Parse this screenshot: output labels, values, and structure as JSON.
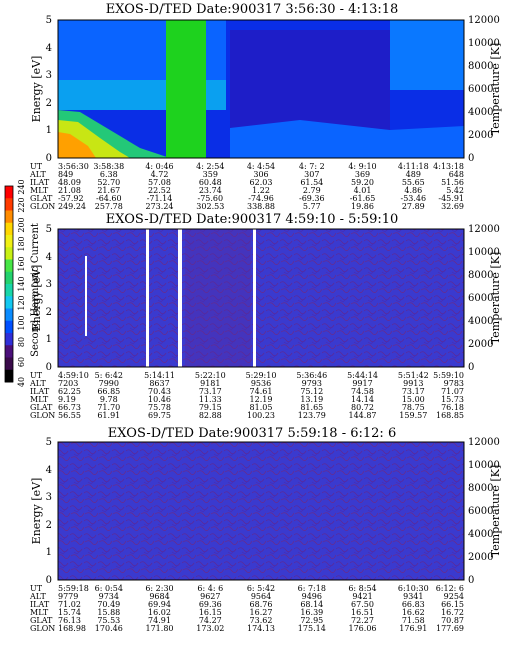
{
  "colorbar": {
    "label": "Second Harmonic Current",
    "ticks": [
      "40",
      "60",
      "80",
      "100",
      "120",
      "140",
      "160",
      "180",
      "200",
      "220",
      "240"
    ],
    "colors": [
      "#000000",
      "#3a0a4a",
      "#4b0f7a",
      "#2f2fd8",
      "#0050ff",
      "#0a8cff",
      "#14c8f0",
      "#19d6a8",
      "#23d26e",
      "#46e646",
      "#c8f014",
      "#f0f014",
      "#ffd700",
      "#ff8c00",
      "#ff3b00",
      "#ff0000"
    ]
  },
  "chart_data": [
    {
      "type": "heatmap",
      "title": "EXOS-D/TED  Date:900317  3:56:30 - 4:13:18",
      "ylabel": "Energy [eV]",
      "y2label": "Temperature [K]",
      "ylim": [
        0,
        5
      ],
      "y2lim": [
        0,
        12000
      ],
      "yticks": [
        "0",
        "1",
        "2",
        "3",
        "4",
        "5"
      ],
      "y2ticks": [
        "0",
        "2000",
        "4000",
        "6000",
        "8000",
        "10000",
        "12000"
      ],
      "table_labels": [
        "UT",
        "ALT",
        "ILAT",
        "MLT",
        "GLAT",
        "GLON"
      ],
      "table": [
        [
          "3:56:30",
          "3:58:38",
          "4: 0:46",
          "4: 2:54",
          "4: 4:54",
          "4: 7: 2",
          "4: 9:10",
          "4:11:18",
          "4:13:18"
        ],
        [
          "849",
          "6.38",
          "4.72",
          "359",
          "306",
          "307",
          "369",
          "489",
          "648"
        ],
        [
          "48.09",
          "52.70",
          "57.08",
          "60.48",
          "62.03",
          "61.54",
          "59.20",
          "55.65",
          "51.56"
        ],
        [
          "21.08",
          "21.67",
          "22.52",
          "23.74",
          "1.22",
          "2.79",
          "4.01",
          "4.86",
          "5.42"
        ],
        [
          "-57.92",
          "-64.60",
          "-71.14",
          "-75.60",
          "-74.96",
          "-69.36",
          "-61.65",
          "-53.46",
          "-45.91"
        ],
        [
          "249.24",
          "257.78",
          "273.24",
          "302.53",
          "338.88",
          "5.77",
          "19.86",
          "27.89",
          "32.69"
        ]
      ]
    },
    {
      "type": "heatmap",
      "title": "EXOS-D/TED  Date:900317  4:59:10 - 5:59:10",
      "ylabel": "Energy [eV]",
      "y2label": "Temperature [K]",
      "ylim": [
        0,
        5
      ],
      "y2lim": [
        0,
        12000
      ],
      "yticks": [
        "0",
        "1",
        "2",
        "3",
        "4",
        "5"
      ],
      "y2ticks": [
        "0",
        "2000",
        "4000",
        "6000",
        "8000",
        "10000",
        "12000"
      ],
      "table_labels": [
        "UT",
        "ALT",
        "ILAT",
        "MLT",
        "GLAT",
        "GLON"
      ],
      "table": [
        [
          "4:59:10",
          "5: 6:42",
          "5:14:11",
          "5:22:10",
          "5:29:10",
          "5:36:46",
          "5:44:14",
          "5:51:42",
          "5:59:10"
        ],
        [
          "7203",
          "7990",
          "8637",
          "9181",
          "9536",
          "9793",
          "9917",
          "9913",
          "9783"
        ],
        [
          "62.25",
          "66.85",
          "70.43",
          "73.17",
          "74.61",
          "75.12",
          "74.58",
          "73.17",
          "71.07"
        ],
        [
          "9.19",
          "9.78",
          "10.46",
          "11.33",
          "12.19",
          "13.19",
          "14.14",
          "15.00",
          "15.73"
        ],
        [
          "66.73",
          "71.70",
          "75.78",
          "79.15",
          "81.05",
          "81.65",
          "80.72",
          "78.75",
          "76.18"
        ],
        [
          "56.55",
          "61.91",
          "69.75",
          "82.88",
          "100.23",
          "123.79",
          "144.87",
          "159.57",
          "168.85"
        ]
      ]
    },
    {
      "type": "heatmap",
      "title": "EXOS-D/TED  Date:900317  5:59:18 - 6:12: 6",
      "ylabel": "Energy [eV]",
      "y2label": "Temperature [K]",
      "ylim": [
        0,
        5
      ],
      "y2lim": [
        0,
        12000
      ],
      "yticks": [
        "0",
        "1",
        "2",
        "3",
        "4",
        "5"
      ],
      "y2ticks": [
        "0",
        "2000",
        "4000",
        "6000",
        "8000",
        "10000",
        "12000"
      ],
      "table_labels": [
        "UT",
        "ALT",
        "ILAT",
        "MLT",
        "GLAT",
        "GLON"
      ],
      "table": [
        [
          "5:59:18",
          "6: 0:54",
          "6: 2:30",
          "6: 4: 6",
          "6: 5:42",
          "6: 7:18",
          "6: 8:54",
          "6:10:30",
          "6:12: 6"
        ],
        [
          "9779",
          "9734",
          "9684",
          "9627",
          "9564",
          "9496",
          "9421",
          "9341",
          "9254"
        ],
        [
          "71.02",
          "70.49",
          "69.94",
          "69.36",
          "68.76",
          "68.14",
          "67.50",
          "66.83",
          "66.15"
        ],
        [
          "15.74",
          "15.88",
          "16.02",
          "16.15",
          "16.27",
          "16.39",
          "16.51",
          "16.62",
          "16.72"
        ],
        [
          "76.13",
          "75.53",
          "74.91",
          "74.27",
          "73.62",
          "72.95",
          "72.27",
          "71.58",
          "70.87"
        ],
        [
          "168.98",
          "170.46",
          "171.80",
          "173.02",
          "174.13",
          "175.14",
          "176.06",
          "176.91",
          "177.69"
        ]
      ]
    }
  ]
}
